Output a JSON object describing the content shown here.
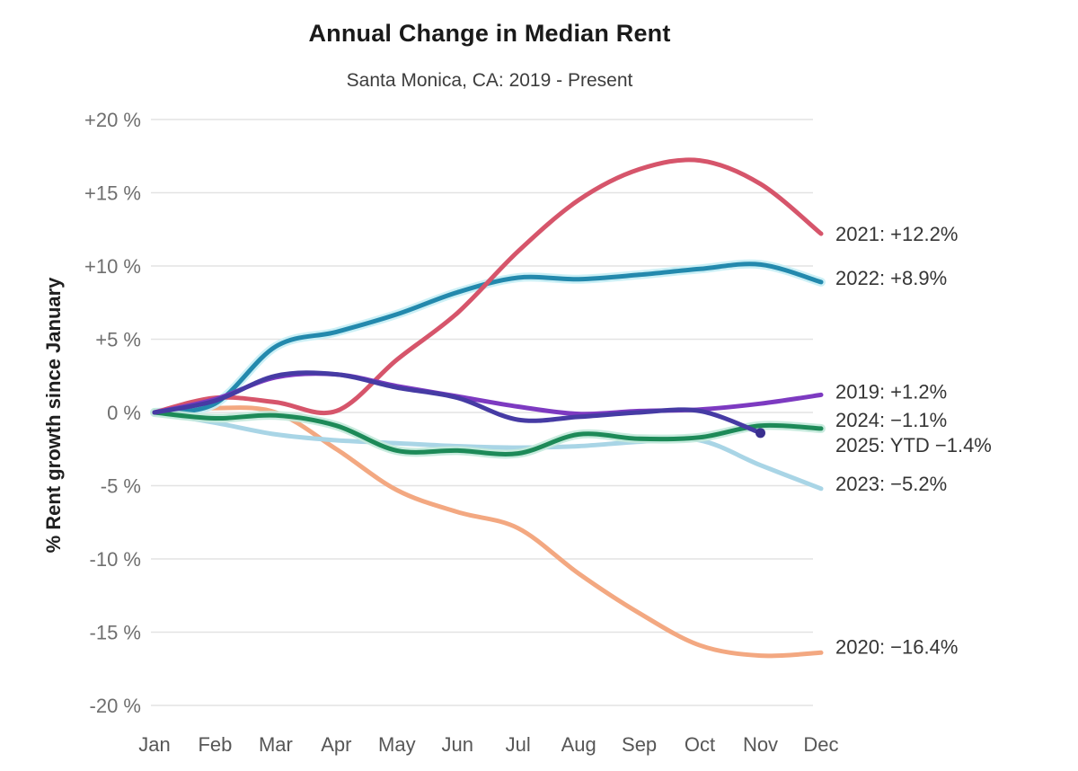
{
  "title": "Annual Change in Median Rent",
  "subtitle": "Santa Monica, CA: 2019 - Present",
  "chart_data": {
    "type": "line",
    "title": "Annual Change in Median Rent",
    "subtitle": "Santa Monica, CA: 2019 - Present",
    "xlabel": "",
    "ylabel": "% Rent growth since January",
    "x": [
      "Jan",
      "Feb",
      "Mar",
      "Apr",
      "May",
      "Jun",
      "Jul",
      "Aug",
      "Sep",
      "Oct",
      "Nov",
      "Dec"
    ],
    "ylim": [
      -20,
      20
    ],
    "yticks": [
      20,
      15,
      10,
      5,
      0,
      -5,
      -10,
      -15,
      -20
    ],
    "ytick_labels": [
      "+20 %",
      "+15 %",
      "+10 %",
      "+5 %",
      "0 %",
      "-5 %",
      "-10 %",
      "-15 %",
      "-20 %"
    ],
    "grid": "horizontal",
    "background_color": "#ffffff",
    "gridline_color": "#e3e3e3",
    "legend_position": "right-end-annotations",
    "series": [
      {
        "name": "2019",
        "color": "#7d3ac1",
        "end_label": "2019: +1.2%",
        "values": [
          0,
          0.9,
          2.4,
          2.6,
          1.8,
          1.1,
          0.4,
          -0.1,
          0.1,
          0.2,
          0.6,
          1.2
        ]
      },
      {
        "name": "2020",
        "color": "#f3a881",
        "end_label": "2020: −16.4%",
        "values": [
          0,
          0.3,
          0,
          -2.5,
          -5.3,
          -6.8,
          -7.9,
          -11,
          -13.7,
          -15.9,
          -16.6,
          -16.4
        ]
      },
      {
        "name": "2021",
        "color": "#d6556b",
        "end_label": "2021: +12.2%",
        "values": [
          0,
          1,
          0.7,
          0.1,
          3.6,
          6.8,
          11,
          14.5,
          16.6,
          17.2,
          15.6,
          12.2
        ]
      },
      {
        "name": "2022",
        "color": "#2389ad",
        "halo": "#c6eef5",
        "end_label": "2022: +8.9%",
        "values": [
          0,
          0.6,
          4.5,
          5.5,
          6.7,
          8.2,
          9.2,
          9.1,
          9.4,
          9.8,
          10.1,
          8.9
        ]
      },
      {
        "name": "2023",
        "color": "#a9d5e6",
        "end_label": "2023: −5.2%",
        "values": [
          0,
          -0.7,
          -1.5,
          -1.9,
          -2.1,
          -2.3,
          -2.4,
          -2.3,
          -2,
          -1.9,
          -3.6,
          -5.2
        ]
      },
      {
        "name": "2024",
        "color": "#1d8a58",
        "halo": "#c2e9da",
        "end_label": "2024: −1.1%",
        "values": [
          0,
          -0.4,
          -0.2,
          -0.9,
          -2.6,
          -2.6,
          -2.8,
          -1.5,
          -1.8,
          -1.7,
          -0.9,
          -1.1
        ]
      },
      {
        "name": "2025",
        "color": "#463ba4",
        "end_dot": true,
        "end_label": "2025: YTD −1.4%",
        "values": [
          0,
          0.8,
          2.5,
          2.6,
          1.7,
          1,
          -0.5,
          -0.3,
          0,
          0.1,
          -1.4
        ]
      }
    ]
  }
}
